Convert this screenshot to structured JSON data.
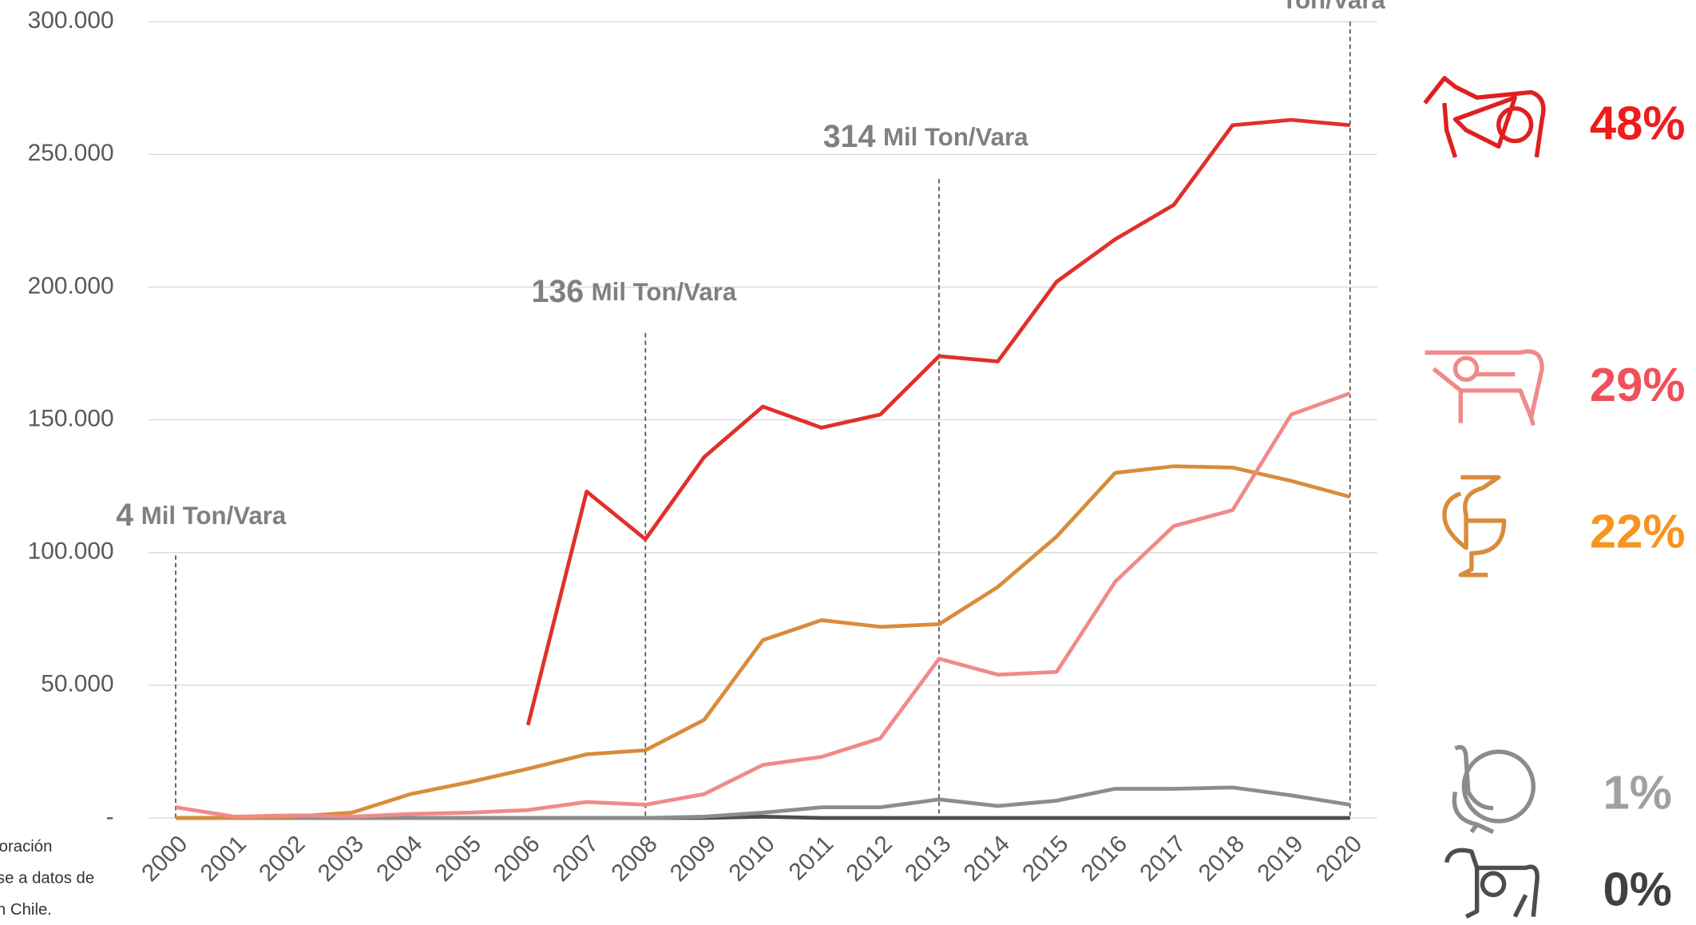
{
  "chart_data": {
    "type": "line",
    "categories": [
      "2000",
      "2001",
      "2002",
      "2003",
      "2004",
      "2005",
      "2006",
      "2007",
      "2008",
      "2009",
      "2010",
      "2011",
      "2012",
      "2013",
      "2014",
      "2015",
      "2016",
      "2017",
      "2018",
      "2019",
      "2020"
    ],
    "series": [
      {
        "color": "#e0302a",
        "values": [
          null,
          null,
          null,
          null,
          null,
          null,
          35000,
          123000,
          105000,
          136000,
          155000,
          147000,
          152000,
          174000,
          172000,
          202000,
          218000,
          231000,
          261000,
          263000,
          261000
        ]
      },
      {
        "color": "#f08a8a",
        "values": [
          4000,
          500,
          1000,
          500,
          1500,
          2000,
          3000,
          6000,
          5000,
          9000,
          20000,
          23000,
          30000,
          60000,
          54000,
          55000,
          89000,
          110000,
          116000,
          152000,
          160000
        ]
      },
      {
        "color": "#d98c3c",
        "values": [
          0,
          0,
          500,
          2000,
          9000,
          13500,
          18500,
          24000,
          25500,
          37000,
          67000,
          74500,
          72000,
          73000,
          87000,
          106000,
          130000,
          132500,
          132000,
          127000,
          121000
        ]
      },
      {
        "color": "#8c8c8c",
        "values": [
          0,
          0,
          0,
          0,
          0,
          0,
          0,
          0,
          0,
          500,
          2000,
          4000,
          4000,
          7000,
          4500,
          6500,
          11000,
          11000,
          11500,
          8500,
          5000
        ]
      },
      {
        "color": "#4d4d4d",
        "values": [
          0,
          0,
          0,
          0,
          0,
          0,
          0,
          0,
          0,
          0,
          500,
          0,
          0,
          0,
          0,
          0,
          0,
          0,
          0,
          0,
          0
        ]
      }
    ],
    "ylim": [
      0,
      300000
    ],
    "yticks": [
      {
        "value": 0,
        "label": "-"
      },
      {
        "value": 50000,
        "label": "50.000"
      },
      {
        "value": 100000,
        "label": "100.000"
      },
      {
        "value": 150000,
        "label": "150.000"
      },
      {
        "value": 200000,
        "label": "200.000"
      },
      {
        "value": 250000,
        "label": "250.000"
      },
      {
        "value": 300000,
        "label": "300.000"
      }
    ],
    "grid": true,
    "annotations": [
      {
        "number": "4",
        "text": "Mil Ton/Vara"
      },
      {
        "number": "136",
        "text": "Mil Ton/Vara"
      },
      {
        "number": "314",
        "text": "Mil Ton/Vara"
      },
      {
        "number": "",
        "text": "Ton/Vara"
      }
    ],
    "shares": [
      {
        "label": "48%",
        "color": "#ee1c1c"
      },
      {
        "label": "29%",
        "color": "#f0505a"
      },
      {
        "label": "22%",
        "color": "#f7941d"
      },
      {
        "label": "1%",
        "color": "#a0a0a0"
      },
      {
        "label": "0%",
        "color": "#404040"
      }
    ],
    "source_note": [
      "oración",
      "se a datos de",
      "n Chile."
    ]
  }
}
